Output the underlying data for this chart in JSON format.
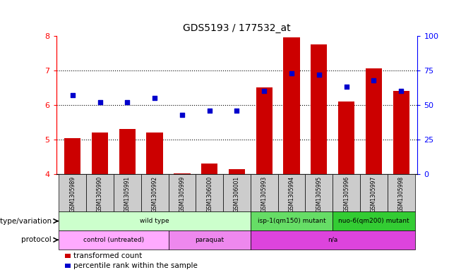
{
  "title": "GDS5193 / 177532_at",
  "samples": [
    "GSM1305989",
    "GSM1305990",
    "GSM1305991",
    "GSM1305992",
    "GSM1305999",
    "GSM1306000",
    "GSM1306001",
    "GSM1305993",
    "GSM1305994",
    "GSM1305995",
    "GSM1305996",
    "GSM1305997",
    "GSM1305998"
  ],
  "bar_values": [
    5.05,
    5.2,
    5.3,
    5.2,
    4.02,
    4.3,
    4.15,
    6.5,
    7.95,
    7.75,
    6.1,
    7.05,
    6.4
  ],
  "dot_percentile": [
    57,
    52,
    52,
    55,
    43,
    46,
    46,
    60,
    73,
    72,
    63,
    68,
    60
  ],
  "bar_color": "#cc0000",
  "dot_color": "#0000cc",
  "ylim_left": [
    4,
    8
  ],
  "ylim_right": [
    0,
    100
  ],
  "yticks_left": [
    4,
    5,
    6,
    7,
    8
  ],
  "yticks_right": [
    0,
    25,
    50,
    75,
    100
  ],
  "genotype_groups": [
    {
      "label": "wild type",
      "start": 0,
      "end": 7,
      "color": "#ccffcc"
    },
    {
      "label": "isp-1(qm150) mutant",
      "start": 7,
      "end": 10,
      "color": "#66dd66"
    },
    {
      "label": "nuo-6(qm200) mutant",
      "start": 10,
      "end": 13,
      "color": "#33cc33"
    }
  ],
  "protocol_groups": [
    {
      "label": "control (untreated)",
      "start": 0,
      "end": 4,
      "color": "#ffaaff"
    },
    {
      "label": "paraquat",
      "start": 4,
      "end": 7,
      "color": "#ee88ee"
    },
    {
      "label": "n/a",
      "start": 7,
      "end": 13,
      "color": "#dd44dd"
    }
  ],
  "legend_bar_label": "transformed count",
  "legend_dot_label": "percentile rank within the sample",
  "background_color": "#ffffff",
  "tick_bg_color": "#cccccc"
}
